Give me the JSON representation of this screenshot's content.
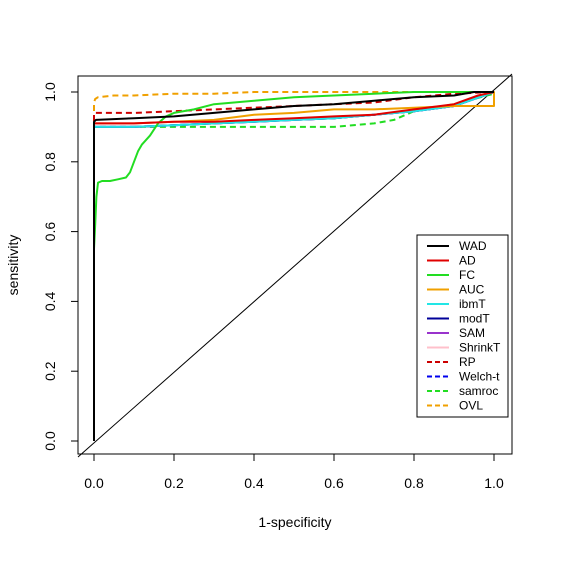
{
  "chart_data": {
    "type": "line",
    "title": "",
    "xlabel": "1-specificity",
    "ylabel": "sensitivity",
    "xlim": [
      0,
      1
    ],
    "ylim": [
      0,
      1
    ],
    "x_ticks": [
      "0.0",
      "0.2",
      "0.4",
      "0.6",
      "0.8",
      "1.0"
    ],
    "y_ticks": [
      "0.0",
      "0.2",
      "0.4",
      "0.6",
      "0.8",
      "1.0"
    ],
    "grid": false,
    "legend_position": "bottom-right",
    "reference_line": {
      "x": [
        0,
        1
      ],
      "y": [
        0,
        1
      ],
      "color": "#000000"
    },
    "series": [
      {
        "name": "WAD",
        "color": "#000000",
        "dash": "solid",
        "x": [
          0,
          0,
          0.005,
          0.1,
          0.2,
          0.3,
          0.4,
          0.5,
          0.6,
          0.7,
          0.8,
          0.9,
          0.95,
          1.0
        ],
        "y": [
          0,
          0.915,
          0.92,
          0.925,
          0.93,
          0.94,
          0.95,
          0.96,
          0.965,
          0.975,
          0.985,
          0.99,
          1.0,
          1.0
        ]
      },
      {
        "name": "AD",
        "color": "#e00000",
        "dash": "solid",
        "x": [
          0,
          0,
          0.01,
          0.1,
          0.2,
          0.3,
          0.4,
          0.5,
          0.6,
          0.7,
          0.8,
          0.9,
          0.96,
          1.0
        ],
        "y": [
          0,
          0.91,
          0.91,
          0.91,
          0.915,
          0.915,
          0.92,
          0.925,
          0.93,
          0.935,
          0.95,
          0.965,
          0.99,
          1.0
        ]
      },
      {
        "name": "FC",
        "color": "#22dd22",
        "dash": "solid",
        "x": [
          0,
          0,
          0.003,
          0.006,
          0.01,
          0.02,
          0.04,
          0.06,
          0.08,
          0.09,
          0.1,
          0.11,
          0.12,
          0.14,
          0.16,
          0.18,
          0.2,
          0.25,
          0.3,
          0.4,
          0.5,
          0.6,
          0.7,
          0.8,
          0.9,
          1.0
        ],
        "y": [
          0,
          0.55,
          0.62,
          0.7,
          0.74,
          0.745,
          0.745,
          0.75,
          0.755,
          0.77,
          0.8,
          0.83,
          0.85,
          0.875,
          0.91,
          0.93,
          0.94,
          0.95,
          0.965,
          0.975,
          0.985,
          0.99,
          0.995,
          1.0,
          1.0,
          1.0
        ]
      },
      {
        "name": "AUC",
        "color": "#f0a000",
        "dash": "solid",
        "x": [
          0,
          0,
          0.01,
          0.1,
          0.2,
          0.3,
          0.4,
          0.5,
          0.6,
          0.7,
          0.8,
          0.9,
          0.97,
          1.0,
          1.0,
          0.999
        ],
        "y": [
          0,
          0.91,
          0.91,
          0.91,
          0.915,
          0.92,
          0.935,
          0.94,
          0.95,
          0.95,
          0.955,
          0.96,
          0.96,
          0.96,
          1.0,
          1.0
        ]
      },
      {
        "name": "ibmT",
        "color": "#22e6e6",
        "dash": "solid",
        "x": [
          0,
          0,
          0.1,
          0.2,
          0.3,
          0.4,
          0.5,
          0.6,
          0.7,
          0.8,
          0.9,
          1.0
        ],
        "y": [
          0,
          0.9,
          0.9,
          0.905,
          0.91,
          0.915,
          0.92,
          0.925,
          0.935,
          0.945,
          0.96,
          1.0
        ]
      },
      {
        "name": "modT",
        "color": "#000099",
        "dash": "solid",
        "x": [
          0,
          0,
          0.1,
          0.2,
          0.3,
          0.4,
          0.5,
          0.6,
          0.7,
          0.8,
          0.9,
          1.0
        ],
        "y": [
          0,
          0.9,
          0.9,
          0.905,
          0.91,
          0.915,
          0.92,
          0.925,
          0.935,
          0.945,
          0.96,
          1.0
        ]
      },
      {
        "name": "SAM",
        "color": "#9933cc",
        "dash": "solid",
        "x": [
          0,
          0,
          0.1,
          0.2,
          0.3,
          0.4,
          0.5,
          0.6,
          0.7,
          0.8,
          0.9,
          1.0
        ],
        "y": [
          0,
          0.9,
          0.9,
          0.905,
          0.91,
          0.915,
          0.92,
          0.925,
          0.935,
          0.945,
          0.96,
          1.0
        ]
      },
      {
        "name": "ShrinkT",
        "color": "#ffc0cb",
        "dash": "solid",
        "x": [
          0,
          0,
          0.1,
          0.2,
          0.3,
          0.4,
          0.5,
          0.6,
          0.7,
          0.8,
          0.9,
          1.0
        ],
        "y": [
          0,
          0.9,
          0.9,
          0.905,
          0.91,
          0.915,
          0.92,
          0.925,
          0.935,
          0.945,
          0.96,
          1.0
        ]
      },
      {
        "name": "RP",
        "color": "#cc0000",
        "dash": "dashed",
        "x": [
          0,
          0,
          0.01,
          0.1,
          0.2,
          0.3,
          0.4,
          0.5,
          0.6,
          0.7,
          0.8,
          0.9,
          1.0
        ],
        "y": [
          0,
          0.94,
          0.94,
          0.94,
          0.945,
          0.95,
          0.955,
          0.96,
          0.965,
          0.97,
          0.985,
          0.995,
          1.0
        ]
      },
      {
        "name": "Welch-t",
        "color": "#0000ee",
        "dash": "dashed",
        "x": [
          0,
          0,
          0.1,
          0.2,
          0.3,
          0.4,
          0.5,
          0.6,
          0.7,
          0.8,
          0.9,
          1.0
        ],
        "y": [
          0,
          0.9,
          0.9,
          0.905,
          0.91,
          0.915,
          0.92,
          0.925,
          0.935,
          0.945,
          0.96,
          1.0
        ]
      },
      {
        "name": "samroc",
        "color": "#22dd22",
        "dash": "dashed",
        "x": [
          0,
          0,
          0.1,
          0.2,
          0.3,
          0.4,
          0.5,
          0.6,
          0.7,
          0.75,
          0.8,
          0.9,
          1.0
        ],
        "y": [
          0,
          0.9,
          0.9,
          0.9,
          0.9,
          0.9,
          0.9,
          0.9,
          0.91,
          0.92,
          0.945,
          0.965,
          0.995
        ]
      },
      {
        "name": "OVL",
        "color": "#f0a000",
        "dash": "dashed",
        "x": [
          0,
          0,
          0.003,
          0.01,
          0.05,
          0.1,
          0.2,
          0.3,
          0.4,
          0.5,
          0.6,
          0.8,
          1.0
        ],
        "y": [
          0,
          0.97,
          0.98,
          0.985,
          0.99,
          0.99,
          0.995,
          0.995,
          1.0,
          1.0,
          1.0,
          1.0,
          1.0
        ]
      }
    ]
  }
}
